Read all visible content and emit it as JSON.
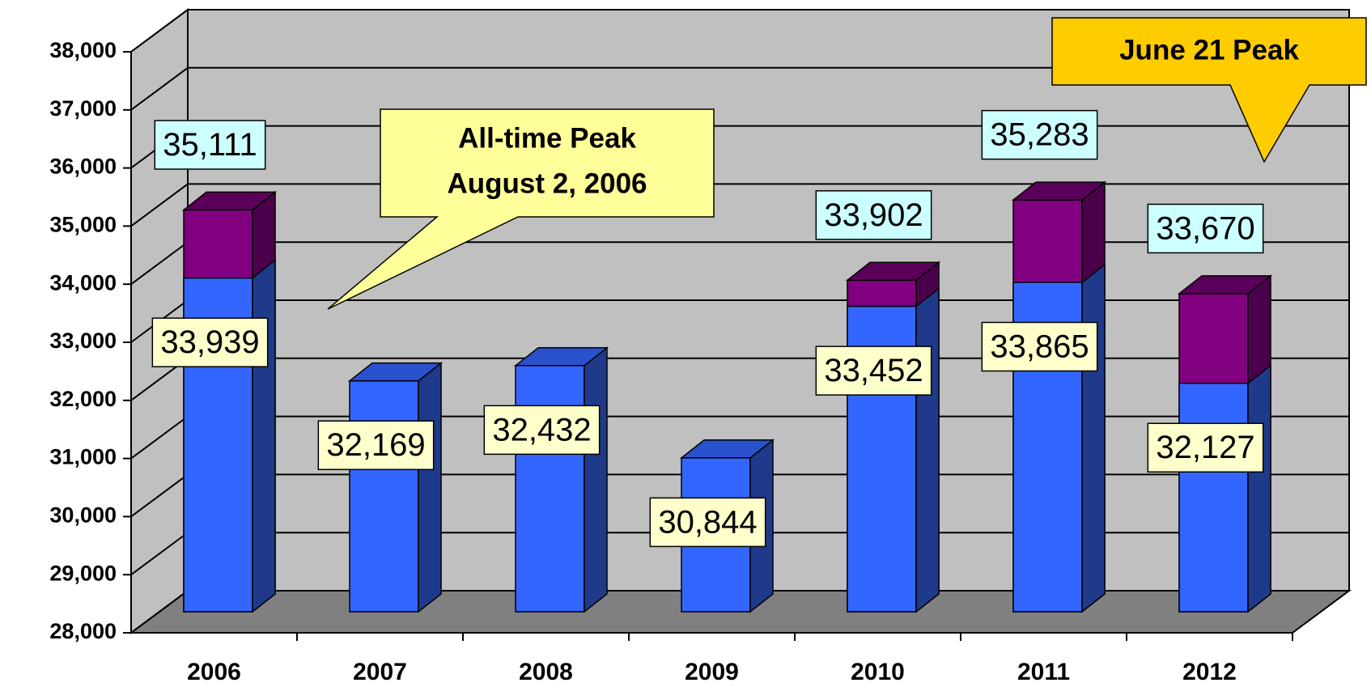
{
  "chart_data": {
    "type": "bar3d",
    "categories": [
      "2006",
      "2007",
      "2008",
      "2009",
      "2010",
      "2011",
      "2012"
    ],
    "series": [
      {
        "color": "#3366ff",
        "values": [
          33939,
          32169,
          32432,
          30844,
          33452,
          33865,
          32127
        ],
        "value_labels": [
          "33,939",
          "32,169",
          "32,432",
          "30,844",
          "33,452",
          "33,865",
          "32,127"
        ]
      },
      {
        "color": "#800080",
        "values": [
          35111,
          null,
          null,
          null,
          33902,
          35283,
          33670
        ],
        "value_labels": [
          "35,111",
          null,
          null,
          null,
          "33,902",
          "35,283",
          "33,670"
        ]
      }
    ],
    "ylim": [
      28000,
      38000
    ],
    "yticks": [
      {
        "value": 28000,
        "label": "28,000"
      },
      {
        "value": 29000,
        "label": "29,000"
      },
      {
        "value": 30000,
        "label": "30,000"
      },
      {
        "value": 31000,
        "label": "31,000"
      },
      {
        "value": 32000,
        "label": "32,000"
      },
      {
        "value": 33000,
        "label": "33,000"
      },
      {
        "value": 34000,
        "label": "34,000"
      },
      {
        "value": 35000,
        "label": "35,000"
      },
      {
        "value": 36000,
        "label": "36,000"
      },
      {
        "value": 37000,
        "label": "37,000"
      },
      {
        "value": 38000,
        "label": "38,000"
      }
    ],
    "grid": true,
    "annotations": [
      {
        "lines": [
          "All-time Peak",
          "August 2, 2006"
        ]
      },
      {
        "lines": [
          "June 21 Peak"
        ]
      }
    ]
  }
}
